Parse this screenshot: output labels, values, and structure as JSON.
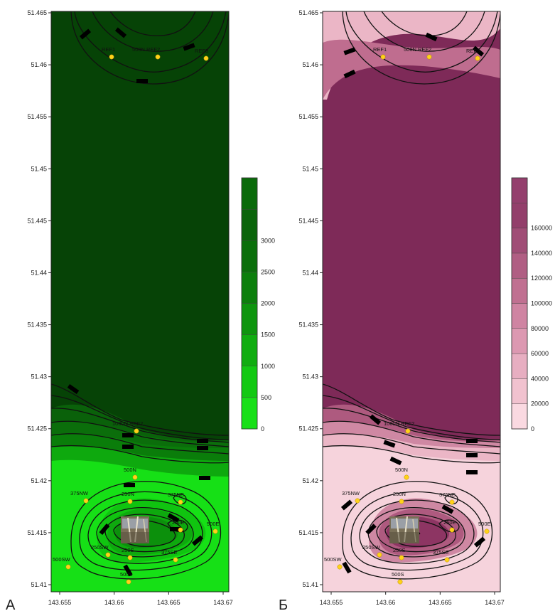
{
  "panels": [
    {
      "letter": "А",
      "ramp": [
        "#16e016",
        "#10c410",
        "#0ea90e",
        "#0c900c",
        "#0a7d0a",
        "#0b6e0b",
        "#0a610a",
        "#085208",
        "#064306"
      ],
      "legend": {
        "ticks": [
          "0",
          "500",
          "1000",
          "1500",
          "2000",
          "2500",
          "3000"
        ],
        "colors": [
          "#18e018",
          "#12c912",
          "#10ad10",
          "#0e950e",
          "#0c7f0c",
          "#0b6f0b",
          "#0a640a",
          "#0a6a0a"
        ]
      }
    },
    {
      "letter": "Б",
      "ramp": [
        "#f6d3dc",
        "#ebb6c6",
        "#e0a0b6",
        "#cf88a3",
        "#bf6d8f",
        "#ae5a7f",
        "#9d4570",
        "#8d3563",
        "#7e2a58"
      ],
      "legend": {
        "ticks": [
          "0",
          "20000",
          "40000",
          "60000",
          "80000",
          "100000",
          "120000",
          "140000",
          "160000"
        ],
        "colors": [
          "#fad9e1",
          "#f1c2cf",
          "#e7aec1",
          "#dc98b1",
          "#cf84a2",
          "#c07091",
          "#b05e83",
          "#a04d76",
          "#933f6b",
          "#943f6d"
        ]
      }
    }
  ],
  "axes": {
    "x_ticks": [
      "143.655",
      "143.66",
      "143.665",
      "143.67"
    ],
    "y_ticks": [
      "51.465",
      "51.46",
      "51.455",
      "51.45",
      "51.445",
      "51.44",
      "51.435",
      "51.43",
      "51.425",
      "51.42",
      "51.415",
      "51.41"
    ]
  },
  "stations": {
    "A": [
      "REF1",
      "500N REF2",
      "REF3",
      "1000N REF2",
      "500N",
      "375NW",
      "250N",
      "375NE",
      "250E",
      "500E",
      "250SW",
      "250S",
      "375SE",
      "500SW",
      "500S"
    ],
    "B": [
      "REF1",
      "500N REF2",
      "REF3",
      "1000N REF2",
      "500N",
      "375NW",
      "250N",
      "375NE",
      "250E",
      "500E",
      "250SW",
      "250S",
      "375SE",
      "500SW",
      "500S"
    ]
  },
  "site_icon": "drilling-platform-photo"
}
